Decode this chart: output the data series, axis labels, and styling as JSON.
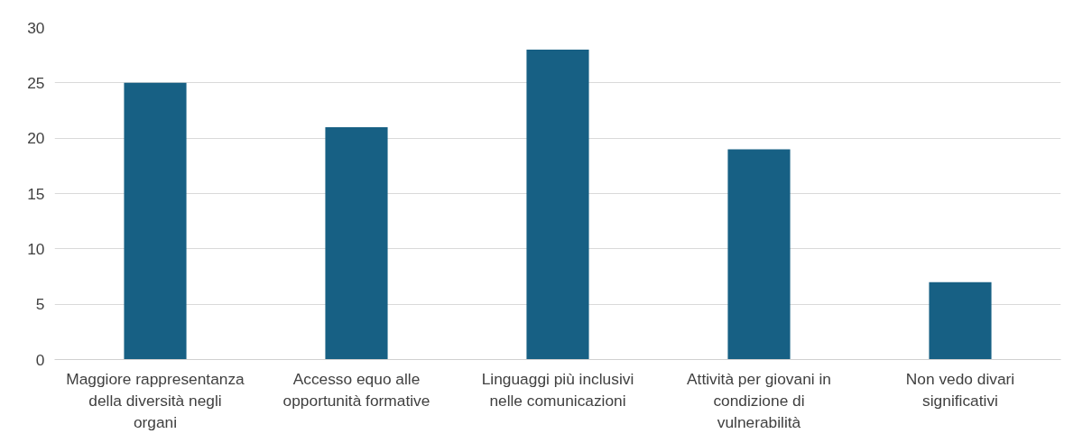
{
  "chart_data": {
    "type": "bar",
    "categories": [
      "Maggiore rappresentanza della diversità negli organi",
      "Accesso equo alle opportunità formative",
      "Linguaggi più inclusivi nelle comunicazioni",
      "Attività per giovani in condizione di vulnerabilità",
      "Non vedo divari significativi"
    ],
    "values": [
      25,
      21,
      28,
      19,
      7
    ],
    "color": "#176084",
    "ylim": [
      0,
      30
    ],
    "yticks": [
      0,
      5,
      10,
      15,
      20,
      25,
      30
    ],
    "grid": "y"
  }
}
